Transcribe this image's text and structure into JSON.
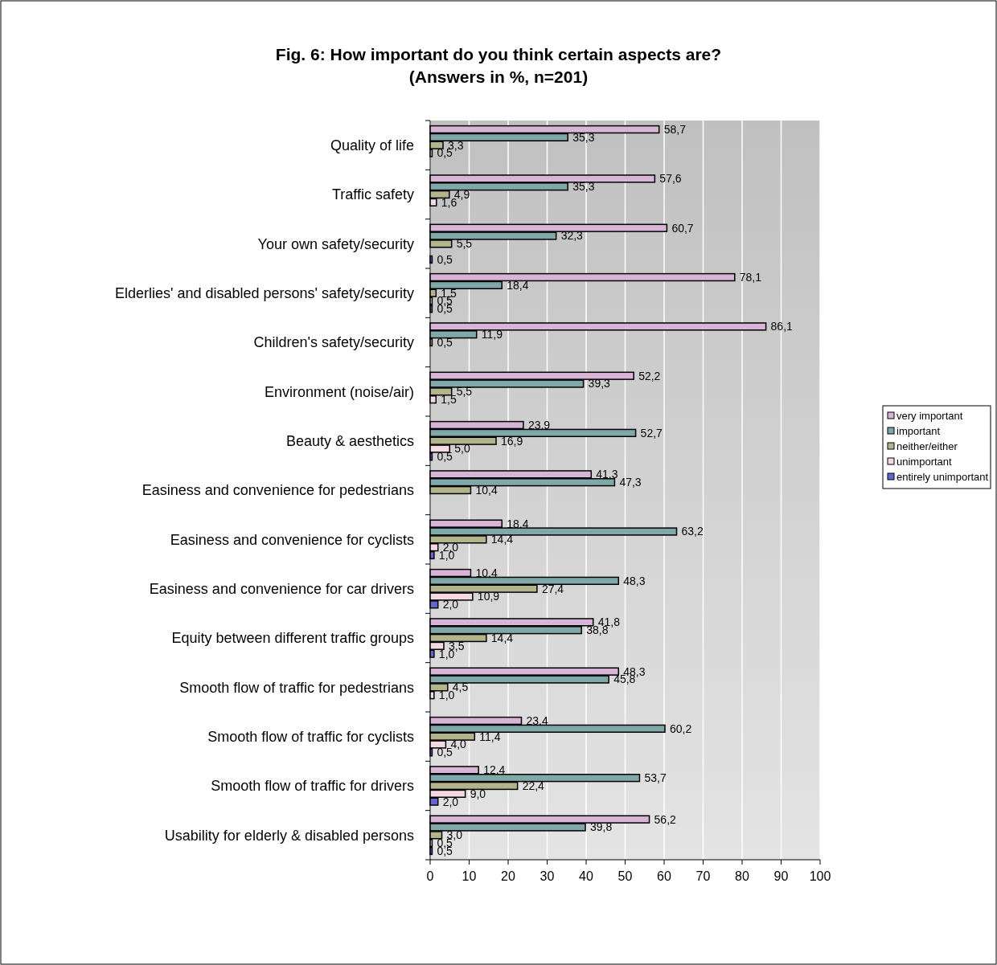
{
  "chart_data": {
    "type": "bar",
    "orientation": "horizontal",
    "title": "Fig. 6: How important do you think certain aspects are?",
    "subtitle": "(Answers in %, n=201)",
    "categories": [
      "Quality of life",
      "Traffic safety",
      "Your own safety/security",
      "Elderlies' and disabled persons' safety/security",
      "Children's safety/security",
      "Environment (noise/air)",
      "Beauty & aesthetics",
      "Easiness and convenience for pedestrians",
      "Easiness and convenience for cyclists",
      "Easiness and convenience for car drivers",
      "Equity between different traffic groups",
      "Smooth flow of traffic for pedestrians",
      "Smooth flow of traffic for cyclists",
      "Smooth flow of traffic for drivers",
      "Usability for elderly & disabled persons"
    ],
    "series": [
      {
        "name": "very important",
        "color": "#d8b4d8",
        "values": [
          58.7,
          57.6,
          60.7,
          78.1,
          86.1,
          52.2,
          23.9,
          41.3,
          18.4,
          10.4,
          41.8,
          48.3,
          23.4,
          12.4,
          56.2
        ],
        "value_labels": [
          "58,7",
          "57,6",
          "60,7",
          "78,1",
          "86,1",
          "52,2",
          "23,9",
          "41,3",
          "18,4",
          "10,4",
          "41,8",
          "48,3",
          "23,4",
          "12,4",
          "56,2"
        ]
      },
      {
        "name": "important",
        "color": "#80a8a8",
        "values": [
          35.3,
          35.3,
          32.3,
          18.4,
          11.9,
          39.3,
          52.7,
          47.3,
          63.2,
          48.3,
          38.8,
          45.8,
          60.2,
          53.7,
          39.8
        ],
        "value_labels": [
          "35,3",
          "35,3",
          "32,3",
          "18,4",
          "11,9",
          "39,3",
          "52,7",
          "47,3",
          "63,2",
          "48,3",
          "38,8",
          "45,8",
          "60,2",
          "53,7",
          "39,8"
        ]
      },
      {
        "name": "neither/either",
        "color": "#b4b48c",
        "values": [
          3.3,
          4.9,
          5.5,
          1.5,
          0.5,
          5.5,
          16.9,
          10.4,
          14.4,
          27.4,
          14.4,
          4.5,
          11.4,
          22.4,
          3.0
        ],
        "value_labels": [
          "3,3",
          "4,9",
          "5,5",
          "1,5",
          "0,5",
          "5,5",
          "16,9",
          "10,4",
          "14,4",
          "27,4",
          "14,4",
          "4,5",
          "11,4",
          "22,4",
          "3,0"
        ]
      },
      {
        "name": "unimportant",
        "color": "#f4d8e4",
        "values": [
          0.5,
          1.6,
          null,
          0.5,
          null,
          1.5,
          5.0,
          null,
          2.0,
          10.9,
          3.5,
          1.0,
          4.0,
          9.0,
          0.5
        ],
        "value_labels": [
          "0,5",
          "1,6",
          null,
          "0,5",
          null,
          "1,5",
          "5,0",
          null,
          "2,0",
          "10,9",
          "3,5",
          "1,0",
          "4,0",
          "9,0",
          "0,5"
        ]
      },
      {
        "name": "entirely unimportant",
        "color": "#6666cc",
        "values": [
          null,
          null,
          0.5,
          0.5,
          null,
          null,
          0.5,
          null,
          1.0,
          2.0,
          1.0,
          null,
          0.5,
          2.0,
          0.5
        ],
        "value_labels": [
          null,
          null,
          "0,5",
          "0,5",
          null,
          null,
          "0,5",
          null,
          "1,0",
          "2,0",
          "1,0",
          null,
          "0,5",
          "2,0",
          "0,5"
        ]
      }
    ],
    "xlim": [
      0,
      100
    ],
    "xticks": [
      0,
      10,
      20,
      30,
      40,
      50,
      60,
      70,
      80,
      90,
      100
    ],
    "grid": "x",
    "legend": "right"
  }
}
